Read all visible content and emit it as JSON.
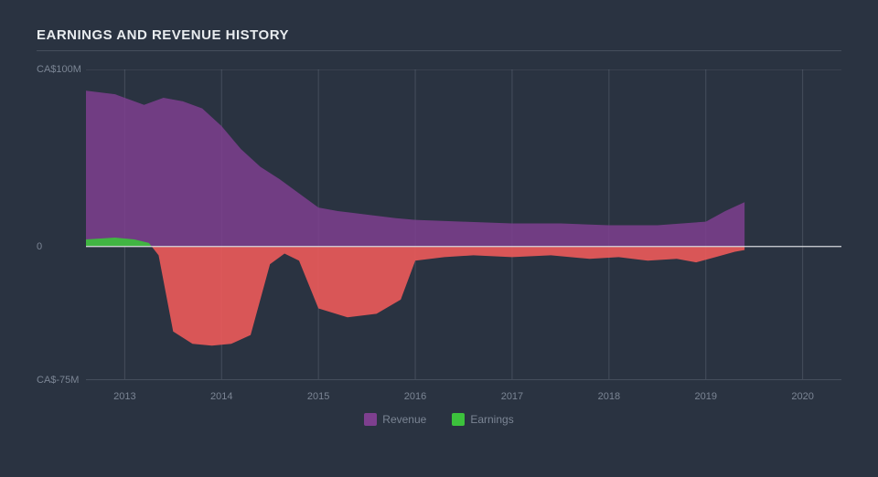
{
  "chart": {
    "type": "area",
    "title": "EARNINGS AND REVENUE HISTORY",
    "background_color": "#2a3341",
    "title_color": "#e8ecef",
    "axis_label_color": "#7b8594",
    "grid_color": "rgba(150,160,175,0.25)",
    "zero_line_color": "#d6d9dd",
    "title_fontsize": 15,
    "label_fontsize": 11,
    "legend_fontsize": 12,
    "x_domain": [
      2012.6,
      2020.4
    ],
    "y_domain": [
      -75,
      100
    ],
    "y_ticks": [
      {
        "v": 100,
        "label": "CA$100M"
      },
      {
        "v": 0,
        "label": "0"
      },
      {
        "v": -75,
        "label": "CA$-75M"
      }
    ],
    "x_ticks": [
      2013,
      2014,
      2015,
      2016,
      2017,
      2018,
      2019,
      2020
    ],
    "series": [
      {
        "name": "Revenue",
        "color": "#7e3f8f",
        "fill_opacity": 0.85,
        "points": [
          [
            2012.6,
            88
          ],
          [
            2012.9,
            86
          ],
          [
            2013.2,
            80
          ],
          [
            2013.4,
            84
          ],
          [
            2013.6,
            82
          ],
          [
            2013.8,
            78
          ],
          [
            2014.0,
            68
          ],
          [
            2014.2,
            55
          ],
          [
            2014.4,
            45
          ],
          [
            2014.6,
            38
          ],
          [
            2014.8,
            30
          ],
          [
            2015.0,
            22
          ],
          [
            2015.2,
            20
          ],
          [
            2015.5,
            18
          ],
          [
            2015.8,
            16
          ],
          [
            2016.0,
            15
          ],
          [
            2016.5,
            14
          ],
          [
            2017.0,
            13
          ],
          [
            2017.5,
            13
          ],
          [
            2018.0,
            12
          ],
          [
            2018.5,
            12
          ],
          [
            2019.0,
            14
          ],
          [
            2019.2,
            20
          ],
          [
            2019.4,
            25
          ]
        ]
      },
      {
        "name": "Earnings",
        "color_pos": "#3cc23c",
        "color_neg": "#ec5a5a",
        "fill_opacity": 0.9,
        "points": [
          [
            2012.6,
            4
          ],
          [
            2012.9,
            5
          ],
          [
            2013.1,
            4
          ],
          [
            2013.25,
            2
          ],
          [
            2013.35,
            -5
          ],
          [
            2013.5,
            -48
          ],
          [
            2013.7,
            -55
          ],
          [
            2013.9,
            -56
          ],
          [
            2014.1,
            -55
          ],
          [
            2014.3,
            -50
          ],
          [
            2014.5,
            -10
          ],
          [
            2014.65,
            -4
          ],
          [
            2014.8,
            -8
          ],
          [
            2015.0,
            -35
          ],
          [
            2015.3,
            -40
          ],
          [
            2015.6,
            -38
          ],
          [
            2015.85,
            -30
          ],
          [
            2016.0,
            -8
          ],
          [
            2016.3,
            -6
          ],
          [
            2016.6,
            -5
          ],
          [
            2017.0,
            -6
          ],
          [
            2017.4,
            -5
          ],
          [
            2017.8,
            -7
          ],
          [
            2018.1,
            -6
          ],
          [
            2018.4,
            -8
          ],
          [
            2018.7,
            -7
          ],
          [
            2018.9,
            -9
          ],
          [
            2019.1,
            -6
          ],
          [
            2019.3,
            -3
          ],
          [
            2019.4,
            -2
          ]
        ]
      }
    ],
    "legend": [
      {
        "label": "Revenue",
        "color": "#7e3f8f"
      },
      {
        "label": "Earnings",
        "color": "#3cc23c"
      }
    ]
  }
}
